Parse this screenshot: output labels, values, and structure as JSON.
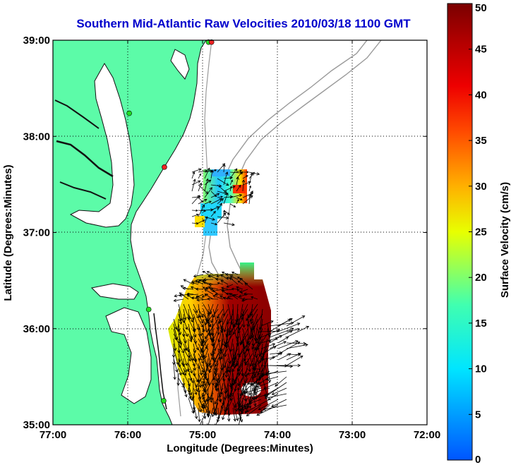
{
  "title": "Southern Mid-Atlantic Raw Velocities 2010/03/18 1100 GMT",
  "colors": {
    "land": "#5cfba8",
    "water": "#ffffff",
    "coast": "#111111",
    "bathymetry": "#9a9a9a",
    "station": "#22dd22",
    "station_alt": "#ee2222",
    "title": "#0000cc"
  },
  "map": {
    "xlabel": "Longitude (Degrees:Minutes)",
    "ylabel": "Latitude (Degrees:Minutes)",
    "lon_range": [
      -77,
      -72
    ],
    "lat_range": [
      35,
      39
    ],
    "lon_ticks": [
      {
        "value": -77,
        "label": "77:00"
      },
      {
        "value": -76,
        "label": "76:00"
      },
      {
        "value": -75,
        "label": "75:00"
      },
      {
        "value": -74,
        "label": "74:00"
      },
      {
        "value": -73,
        "label": "73:00"
      },
      {
        "value": -72,
        "label": "72:00"
      }
    ],
    "lat_ticks": [
      {
        "value": 39,
        "label": "39:00"
      },
      {
        "value": 38,
        "label": "38:00"
      },
      {
        "value": 37,
        "label": "37:00"
      },
      {
        "value": 36,
        "label": "36:00"
      },
      {
        "value": 35,
        "label": "35:00"
      }
    ],
    "grid": "dotted",
    "stations": [
      {
        "lon": -74.92,
        "lat": 38.98,
        "status": "green"
      },
      {
        "lon": -74.88,
        "lat": 38.98,
        "status": "red"
      },
      {
        "lon": -75.98,
        "lat": 38.24,
        "status": "green"
      },
      {
        "lon": -75.51,
        "lat": 37.68,
        "status": "red"
      },
      {
        "lon": -75.72,
        "lat": 36.2,
        "status": "green"
      },
      {
        "lon": -75.52,
        "lat": 35.25,
        "status": "green"
      }
    ]
  },
  "colorbar": {
    "label": "Surface Velocity (cm/s)",
    "min": 0,
    "max": 50,
    "ticks": [
      {
        "value": 0,
        "label": "0"
      },
      {
        "value": 5,
        "label": "5"
      },
      {
        "value": 10,
        "label": "10"
      },
      {
        "value": 15,
        "label": "15"
      },
      {
        "value": 20,
        "label": "20"
      },
      {
        "value": 25,
        "label": "25"
      },
      {
        "value": 30,
        "label": "30"
      },
      {
        "value": 35,
        "label": "35"
      },
      {
        "value": 40,
        "label": "40"
      },
      {
        "value": 45,
        "label": "45"
      },
      {
        "value": 50,
        "label": "50"
      }
    ]
  }
}
